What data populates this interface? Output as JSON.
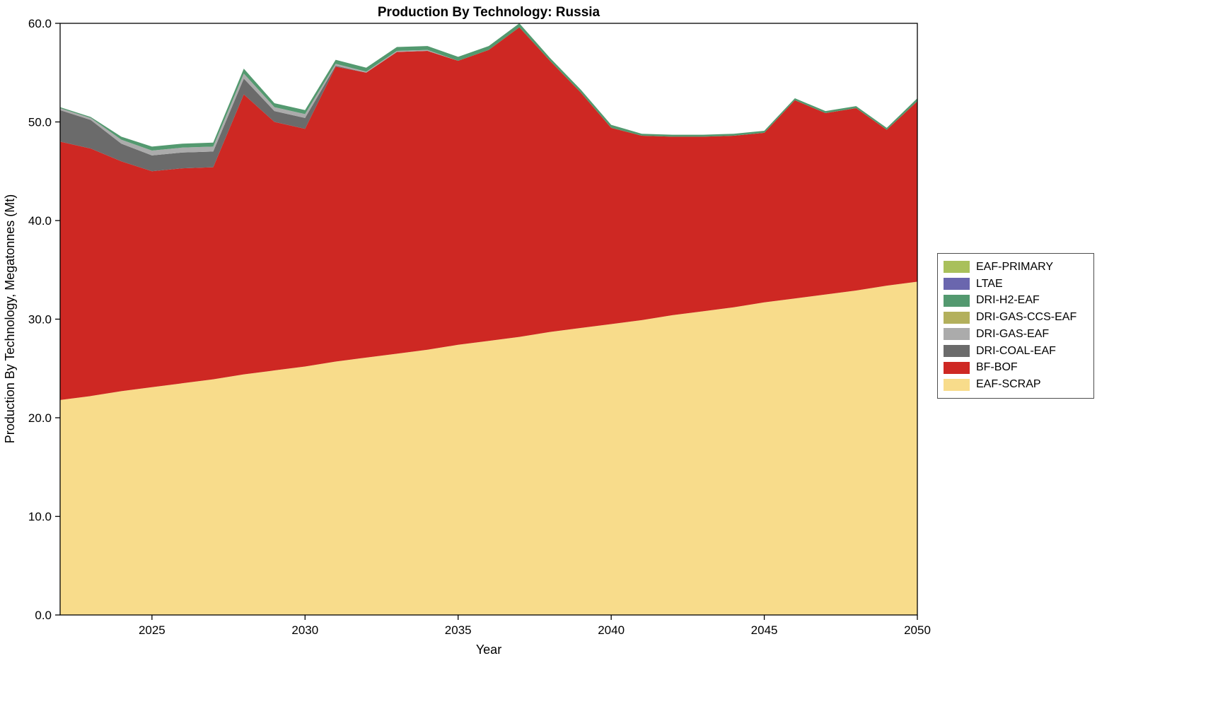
{
  "title": "Production By Technology: Russia",
  "xlabel": "Year",
  "ylabel": "Production By Technology, Megatonnes (Mt)",
  "chart_data": {
    "type": "area",
    "stacked": true,
    "grid": false,
    "xlim": [
      2022,
      2050
    ],
    "ylim": [
      0,
      60
    ],
    "x_ticks": [
      2025,
      2030,
      2035,
      2040,
      2045,
      2050
    ],
    "y_ticks": [
      0,
      10,
      20,
      30,
      40,
      50,
      60
    ],
    "y_tick_labels": [
      "0.0",
      "10.0",
      "20.0",
      "30.0",
      "40.0",
      "50.0",
      "60.0"
    ],
    "x": [
      2022,
      2023,
      2024,
      2025,
      2026,
      2027,
      2028,
      2029,
      2030,
      2031,
      2032,
      2033,
      2034,
      2035,
      2036,
      2037,
      2038,
      2039,
      2040,
      2041,
      2042,
      2043,
      2044,
      2045,
      2046,
      2047,
      2048,
      2049,
      2050
    ],
    "series": [
      {
        "name": "EAF-SCRAP",
        "color": "#F8DC8B",
        "values": [
          21.8,
          22.2,
          22.7,
          23.1,
          23.5,
          23.9,
          24.4,
          24.8,
          25.2,
          25.7,
          26.1,
          26.5,
          26.9,
          27.4,
          27.8,
          28.2,
          28.7,
          29.1,
          29.5,
          29.9,
          30.4,
          30.8,
          31.2,
          31.7,
          32.1,
          32.5,
          32.9,
          33.4,
          33.8
        ]
      },
      {
        "name": "BF-BOF",
        "color": "#CE2823",
        "values": [
          26.2,
          25.1,
          23.3,
          21.9,
          21.8,
          21.5,
          28.4,
          25.2,
          24.1,
          29.9,
          28.9,
          30.6,
          30.3,
          28.8,
          29.5,
          31.4,
          27.5,
          23.9,
          19.9,
          18.7,
          18.1,
          17.7,
          17.4,
          17.2,
          20.1,
          18.4,
          18.5,
          15.8,
          18.3
        ]
      },
      {
        "name": "DRI-COAL-EAF",
        "color": "#6B6B6B",
        "values": [
          3.2,
          2.9,
          1.8,
          1.6,
          1.6,
          1.6,
          1.6,
          1.1,
          1.1,
          0.1,
          0,
          0,
          0,
          0,
          0,
          0,
          0,
          0,
          0,
          0,
          0,
          0,
          0,
          0,
          0,
          0,
          0,
          0,
          0
        ]
      },
      {
        "name": "DRI-GAS-EAF",
        "color": "#ABABAB",
        "values": [
          0.2,
          0.2,
          0.4,
          0.5,
          0.5,
          0.5,
          0.5,
          0.4,
          0.4,
          0.2,
          0.1,
          0.1,
          0.1,
          0,
          0,
          0,
          0,
          0,
          0,
          0,
          0,
          0,
          0,
          0,
          0,
          0,
          0,
          0,
          0
        ]
      },
      {
        "name": "DRI-GAS-CCS-EAF",
        "color": "#B3B05C",
        "values": [
          0,
          0,
          0,
          0,
          0,
          0,
          0,
          0,
          0,
          0,
          0,
          0,
          0,
          0,
          0,
          0,
          0,
          0,
          0,
          0,
          0,
          0,
          0,
          0,
          0,
          0,
          0,
          0,
          0
        ]
      },
      {
        "name": "DRI-H2-EAF",
        "color": "#53996F",
        "values": [
          0.1,
          0.1,
          0.3,
          0.4,
          0.4,
          0.4,
          0.5,
          0.4,
          0.4,
          0.4,
          0.4,
          0.4,
          0.4,
          0.4,
          0.4,
          0.4,
          0.3,
          0.3,
          0.3,
          0.2,
          0.2,
          0.2,
          0.2,
          0.2,
          0.2,
          0.2,
          0.2,
          0.2,
          0.3
        ]
      },
      {
        "name": "LTAE",
        "color": "#6A66AE",
        "values": [
          0,
          0,
          0,
          0,
          0,
          0,
          0,
          0,
          0,
          0,
          0,
          0,
          0,
          0,
          0,
          0,
          0,
          0,
          0,
          0,
          0,
          0,
          0,
          0,
          0,
          0,
          0,
          0,
          0
        ]
      },
      {
        "name": "EAF-PRIMARY",
        "color": "#A9C05B",
        "values": [
          0,
          0,
          0,
          0,
          0,
          0,
          0,
          0,
          0,
          0,
          0,
          0,
          0,
          0,
          0,
          0,
          0,
          0,
          0,
          0,
          0,
          0,
          0,
          0,
          0,
          0,
          0,
          0,
          0
        ]
      }
    ],
    "legend": {
      "position": "right-outside",
      "order_top_to_bottom": [
        "EAF-PRIMARY",
        "LTAE",
        "DRI-H2-EAF",
        "DRI-GAS-CCS-EAF",
        "DRI-GAS-EAF",
        "DRI-COAL-EAF",
        "BF-BOF",
        "EAF-SCRAP"
      ]
    }
  }
}
